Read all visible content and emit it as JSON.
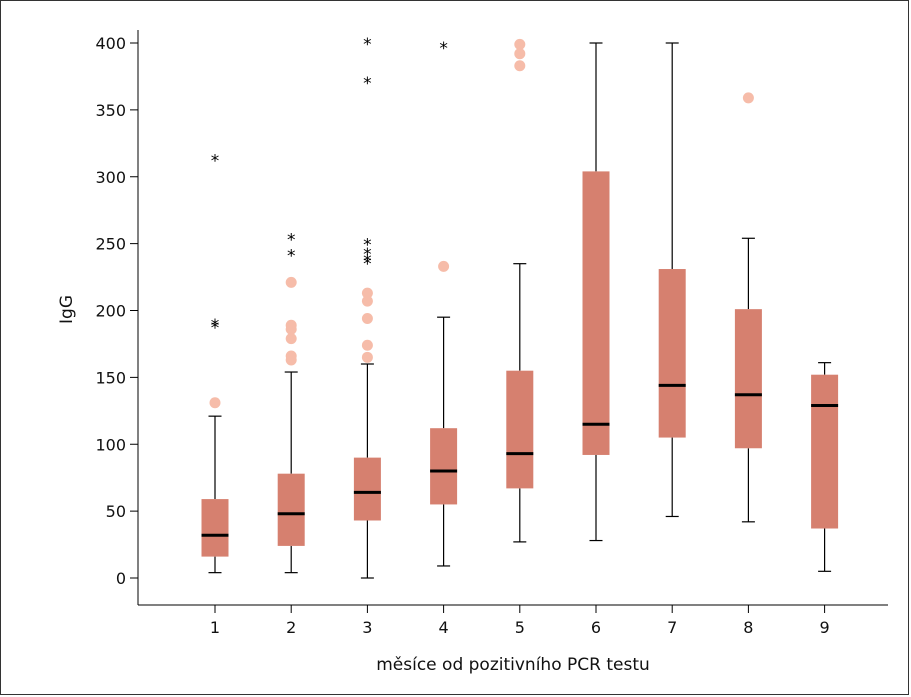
{
  "chart_data": {
    "type": "boxplot",
    "xlabel": "měsíce od pozitivního PCR testu",
    "ylabel": "IgG",
    "ylim": [
      -25,
      410
    ],
    "yticks": [
      0,
      50,
      100,
      150,
      200,
      250,
      300,
      350,
      400
    ],
    "categories": [
      "1",
      "2",
      "3",
      "4",
      "5",
      "6",
      "7",
      "8",
      "9"
    ],
    "grid": false,
    "colors": {
      "box": "#d6806f",
      "median": "#000000",
      "outlier_circle": "#f6bca9",
      "whisker": "#000000",
      "extreme_star": "#000000"
    },
    "boxes": [
      {
        "category": "1",
        "whisker_low": 4,
        "q1": 16,
        "median": 32,
        "q3": 59,
        "whisker_high": 121,
        "outliers": [
          131
        ],
        "extremes": [
          313,
          190,
          188
        ]
      },
      {
        "category": "2",
        "whisker_low": 4,
        "q1": 24,
        "median": 48,
        "q3": 78,
        "whisker_high": 154,
        "outliers": [
          221,
          189,
          186,
          179,
          166,
          163
        ],
        "extremes": [
          254,
          242
        ]
      },
      {
        "category": "3",
        "whisker_low": 0,
        "q1": 43,
        "median": 64,
        "q3": 90,
        "whisker_high": 160,
        "outliers": [
          213,
          207,
          194,
          174,
          165
        ],
        "extremes": [
          400,
          371,
          250,
          243,
          238,
          236
        ]
      },
      {
        "category": "4",
        "whisker_low": 9,
        "q1": 55,
        "median": 80,
        "q3": 112,
        "whisker_high": 195,
        "outliers": [
          233
        ],
        "extremes": [
          397
        ]
      },
      {
        "category": "5",
        "whisker_low": 27,
        "q1": 67,
        "median": 93,
        "q3": 155,
        "whisker_high": 235,
        "outliers": [
          399,
          392,
          383
        ],
        "extremes": []
      },
      {
        "category": "6",
        "whisker_low": 28,
        "q1": 92,
        "median": 115,
        "q3": 304,
        "whisker_high": 400,
        "outliers": [],
        "extremes": []
      },
      {
        "category": "7",
        "whisker_low": 46,
        "q1": 105,
        "median": 144,
        "q3": 231,
        "whisker_high": 400,
        "outliers": [],
        "extremes": []
      },
      {
        "category": "8",
        "whisker_low": 42,
        "q1": 97,
        "median": 137,
        "q3": 201,
        "whisker_high": 254,
        "outliers": [
          359
        ],
        "extremes": []
      },
      {
        "category": "9",
        "whisker_low": 5,
        "q1": 37,
        "median": 129,
        "q3": 152,
        "whisker_high": 161,
        "outliers": [],
        "extremes": []
      }
    ]
  }
}
